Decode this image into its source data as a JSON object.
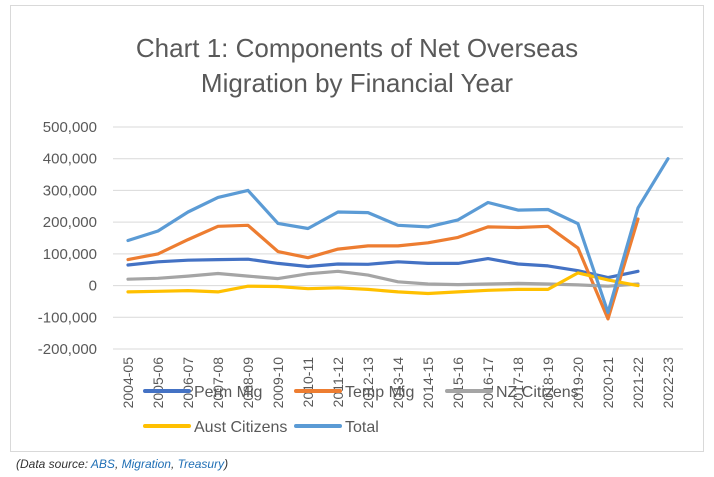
{
  "chart_data": {
    "type": "line",
    "title_lines": [
      "Chart 1: Components of Net Overseas",
      "Migration by Financial Year"
    ],
    "xlabel": "",
    "ylabel": "",
    "ylim": [
      -200000,
      500000
    ],
    "y_ticks": [
      500000,
      400000,
      300000,
      200000,
      100000,
      0,
      -100000,
      -200000
    ],
    "y_tick_labels": [
      "500,000",
      "400,000",
      "300,000",
      "200,000",
      "100,000",
      "0",
      "-100,000",
      "-200,000"
    ],
    "grid": true,
    "legend_position": "bottom",
    "categories": [
      "2004-05",
      "2005-06",
      "2006-07",
      "2007-08",
      "2008-09",
      "2009-10",
      "2010-11",
      "2011-12",
      "2012-13",
      "2013-14",
      "2014-15",
      "2015-16",
      "2016-17",
      "2017-18",
      "2018-19",
      "2019-20",
      "2020-21",
      "2021-22",
      "2022-23"
    ],
    "series": [
      {
        "name": "Perm Mig",
        "color": "#4472c4",
        "values": [
          65000,
          75000,
          80000,
          82000,
          83000,
          70000,
          60000,
          68000,
          67000,
          75000,
          70000,
          70000,
          85000,
          68000,
          62000,
          47000,
          25000,
          45000,
          null
        ]
      },
      {
        "name": "Temp Mig",
        "color": "#ed7d31",
        "values": [
          82000,
          100000,
          145000,
          187000,
          190000,
          107000,
          88000,
          115000,
          125000,
          125000,
          135000,
          152000,
          185000,
          183000,
          187000,
          118000,
          -105000,
          210000,
          null
        ]
      },
      {
        "name": "NZ Citizens",
        "color": "#a5a5a5",
        "values": [
          20000,
          23000,
          30000,
          38000,
          30000,
          22000,
          37000,
          45000,
          33000,
          12000,
          5000,
          3000,
          5000,
          7000,
          5000,
          2000,
          -2000,
          5000,
          null
        ]
      },
      {
        "name": "Aust Citizens",
        "color": "#ffc000",
        "values": [
          -20000,
          -18000,
          -16000,
          -20000,
          -2000,
          -3000,
          -10000,
          -7000,
          -12000,
          -20000,
          -25000,
          -20000,
          -15000,
          -12000,
          -12000,
          40000,
          18000,
          0,
          null
        ]
      },
      {
        "name": "Total",
        "color": "#5b9bd5",
        "values": [
          142000,
          172000,
          232000,
          278000,
          300000,
          196000,
          180000,
          232000,
          230000,
          190000,
          185000,
          207000,
          262000,
          238000,
          240000,
          195000,
          -85000,
          245000,
          400000
        ]
      }
    ]
  },
  "source_note": {
    "prefix": "(Data source: ",
    "links": [
      "ABS",
      "Migration",
      "Treasury"
    ],
    "separator": ", ",
    "suffix": ")"
  }
}
